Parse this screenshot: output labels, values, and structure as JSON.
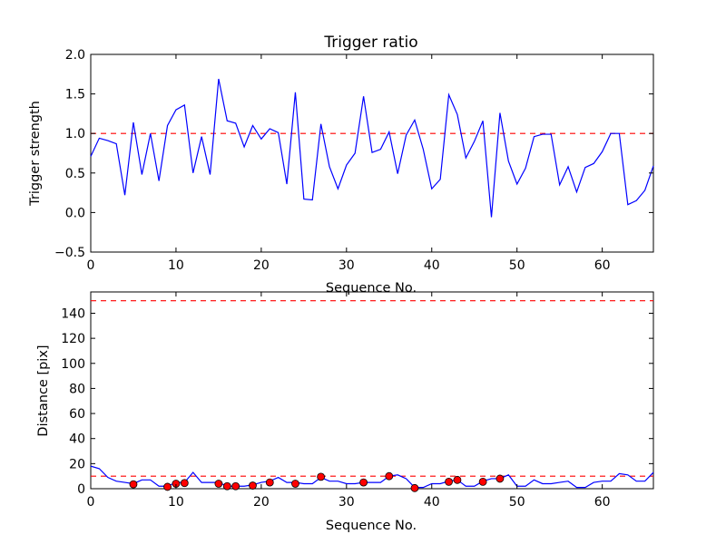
{
  "chart_data": [
    {
      "type": "line",
      "title": "Trigger ratio",
      "xlabel": "Sequence No.",
      "ylabel": "Trigger strength",
      "xlim": [
        0,
        66
      ],
      "ylim": [
        -0.5,
        2.0
      ],
      "xticks": [
        0,
        10,
        20,
        30,
        40,
        50,
        60
      ],
      "yticks": [
        -0.5,
        0.0,
        0.5,
        1.0,
        1.5,
        2.0
      ],
      "xtick_labels": [
        "0",
        "10",
        "20",
        "30",
        "40",
        "50",
        "60"
      ],
      "ytick_labels": [
        "−0.5",
        "0.0",
        "0.5",
        "1.0",
        "1.5",
        "2.0"
      ],
      "grid": false,
      "colors": {
        "line": "#0000ff",
        "threshold": "#ff0000"
      },
      "thresholds": [
        1.0
      ],
      "series": [
        {
          "x": [
            0,
            1,
            2,
            3,
            4,
            5,
            6,
            7,
            8,
            9,
            10,
            11,
            12,
            13,
            14,
            15,
            16,
            17,
            18,
            19,
            20,
            21,
            22,
            23,
            24,
            25,
            26,
            27,
            28,
            29,
            30,
            31,
            32,
            33,
            34,
            35,
            36,
            37,
            38,
            39,
            40,
            41,
            42,
            43,
            44,
            45,
            46,
            47,
            48,
            49,
            50,
            51,
            52,
            53,
            54,
            55,
            56,
            57,
            58,
            59,
            60,
            61,
            62,
            63,
            64,
            65,
            66
          ],
          "values": [
            0.71,
            0.94,
            0.91,
            0.87,
            0.22,
            1.14,
            0.48,
            1.0,
            0.4,
            1.1,
            1.3,
            1.36,
            0.5,
            0.96,
            0.48,
            1.69,
            1.16,
            1.13,
            0.83,
            1.1,
            0.93,
            1.06,
            1.01,
            0.36,
            1.52,
            0.17,
            0.16,
            1.12,
            0.58,
            0.3,
            0.6,
            0.75,
            1.47,
            0.76,
            0.8,
            1.02,
            0.49,
            0.98,
            1.17,
            0.8,
            0.3,
            0.42,
            1.49,
            1.24,
            0.69,
            0.9,
            1.16,
            -0.06,
            1.26,
            0.65,
            0.36,
            0.56,
            0.96,
            0.99,
            0.99,
            0.35,
            0.58,
            0.26,
            0.57,
            0.62,
            0.77,
            1.0,
            1.0,
            0.1,
            0.15,
            0.28,
            0.59
          ]
        }
      ]
    },
    {
      "type": "line",
      "title": "",
      "xlabel": "Sequence No.",
      "ylabel": "Distance [pix]",
      "xlim": [
        0,
        66
      ],
      "ylim": [
        0,
        157
      ],
      "xticks": [
        0,
        10,
        20,
        30,
        40,
        50,
        60
      ],
      "yticks": [
        0,
        20,
        40,
        60,
        80,
        100,
        120,
        140
      ],
      "xtick_labels": [
        "0",
        "10",
        "20",
        "30",
        "40",
        "50",
        "60"
      ],
      "ytick_labels": [
        "0",
        "20",
        "40",
        "60",
        "80",
        "100",
        "120",
        "140"
      ],
      "grid": false,
      "colors": {
        "line": "#0000ff",
        "threshold": "#ff0000",
        "marker": "#ff0000"
      },
      "thresholds": [
        150,
        10
      ],
      "series": [
        {
          "x": [
            0,
            1,
            2,
            3,
            4,
            5,
            6,
            7,
            8,
            9,
            10,
            11,
            12,
            13,
            14,
            15,
            16,
            17,
            18,
            19,
            20,
            21,
            22,
            23,
            24,
            25,
            26,
            27,
            28,
            29,
            30,
            31,
            32,
            33,
            34,
            35,
            36,
            37,
            38,
            39,
            40,
            41,
            42,
            43,
            44,
            45,
            46,
            47,
            48,
            49,
            50,
            51,
            52,
            53,
            54,
            55,
            56,
            57,
            58,
            59,
            60,
            61,
            62,
            63,
            64,
            65,
            66
          ],
          "values": [
            18,
            16,
            9,
            6,
            5,
            4,
            7,
            7,
            2,
            2,
            5,
            5,
            13,
            5,
            5,
            5,
            2,
            2,
            2,
            3,
            5,
            6,
            9,
            5,
            5,
            4,
            4,
            9,
            6,
            6,
            4,
            4,
            5,
            5,
            5,
            10,
            11,
            8,
            1,
            1,
            4,
            4,
            6,
            7,
            2,
            2,
            6,
            8,
            8,
            11,
            2,
            2,
            7,
            4,
            4,
            5,
            6,
            1,
            1,
            5,
            6,
            6,
            12,
            11,
            6,
            6,
            13
          ]
        },
        {
          "x": [
            5,
            9,
            10,
            11,
            15,
            16,
            17,
            19,
            21,
            24,
            27,
            32,
            35,
            38,
            42,
            43,
            46,
            48
          ],
          "values": [
            3.5,
            1.5,
            4.0,
            4.5,
            4.0,
            2.0,
            2.0,
            2.5,
            5.0,
            4.0,
            9.5,
            5.0,
            10.0,
            0.5,
            5.5,
            7.0,
            5.5,
            8.0
          ]
        }
      ]
    }
  ]
}
